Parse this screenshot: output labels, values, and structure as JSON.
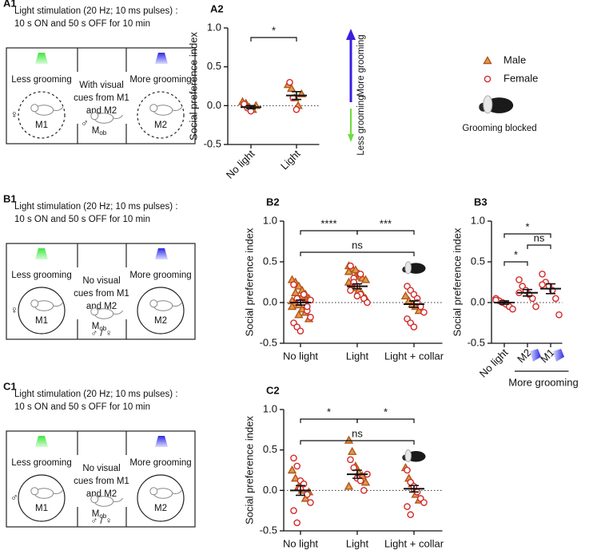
{
  "diagrams": [
    {
      "label": "A1",
      "heading": [
        "Light stimulation (20 Hz; 10 ms pulses) :",
        "10 s ON and 50 s OFF for 10 min"
      ],
      "left": "Less grooming",
      "middle": [
        "With visual",
        "cues from M1",
        "and M2"
      ],
      "right": "More grooming",
      "m1": "M1",
      "m2": "M2",
      "mob": {
        "main": "M",
        "sub": "ob"
      },
      "left_sex": "♀",
      "middle_sex": "♂",
      "cue_border": "dashed"
    },
    {
      "label": "B1",
      "heading": [
        "Light stimulation (20 Hz; 10 ms pulses) :",
        "10 s ON and 50 s OFF for 10 min"
      ],
      "left": "Less grooming",
      "middle": [
        "No visual",
        "cues from M1",
        "and M2"
      ],
      "right": "More grooming",
      "m1": "M1",
      "m2": "M2",
      "mob": {
        "main": "M",
        "sub": "ob"
      },
      "left_sex": "♀",
      "bottom_sex": "♂ / ♀",
      "cue_border": "solid"
    },
    {
      "label": "C1",
      "heading": [
        "Light stimulation (20 Hz; 10 ms pulses) :",
        "10 s ON and 50 s OFF for 10 min"
      ],
      "left": "Less grooming",
      "middle": [
        "No visual",
        "cues from M1",
        "and M2"
      ],
      "right": "More grooming",
      "m1": "M1",
      "m2": "M2",
      "mob": {
        "main": "M",
        "sub": "ob"
      },
      "left_sex": "♂",
      "bottom_sex": "♂ / ♀",
      "cue_border": "solid"
    }
  ],
  "legend": [
    {
      "name": "Male",
      "marker": "triangle",
      "color": "#e09a4c",
      "stroke": "#b0561a"
    },
    {
      "name": "Female",
      "marker": "circle",
      "color": "#ffffff",
      "stroke": "#d42a2a"
    }
  ],
  "collar_label": "Grooming blocked",
  "arrow": {
    "up": "More grooming",
    "down": "Less grooming",
    "up_color": "#3a1fe0",
    "down_color": "#6fdc3c"
  },
  "chart_data": [
    {
      "type": "strip",
      "title": "A2",
      "y_label": "Social preference index",
      "categories": [
        "No light",
        "Light"
      ],
      "ylim": [
        -0.5,
        1.0
      ],
      "yticks": [
        -0.5,
        {
          "value": 0,
          "label": "0.0"
        },
        0.5,
        {
          "value": 1,
          "label": "1.0"
        }
      ],
      "hline": 0,
      "series": [
        {
          "marker": "triangle",
          "color": "#e09a4c",
          "stroke": "#b0561a",
          "values": [
            [
              0.05,
              0.03,
              -0.02,
              -0.05,
              0.0
            ],
            [
              0.27,
              0.22,
              0.1,
              0.0,
              0.15
            ]
          ]
        },
        {
          "marker": "circle",
          "color": "#ffffff",
          "stroke": "#d42a2a",
          "values": [
            [
              0.02,
              -0.03,
              -0.07
            ],
            [
              0.3,
              0.1,
              -0.05
            ]
          ]
        }
      ],
      "mean": [
        -0.02,
        0.13
      ],
      "sem": [
        0.02,
        0.05
      ],
      "comparisons": [
        {
          "from": 0,
          "to": 1,
          "label": "*"
        }
      ]
    },
    {
      "type": "strip",
      "title": "B2",
      "y_label": "Social preference index",
      "categories": [
        "No light",
        "Light",
        "Light + collar"
      ],
      "ylim": [
        -0.5,
        1.0
      ],
      "yticks": [
        -0.5,
        {
          "value": 0,
          "label": "0.0"
        },
        0.5,
        {
          "value": 1,
          "label": "1.0"
        }
      ],
      "hline": 0,
      "series": [
        {
          "marker": "triangle",
          "color": "#e09a4c",
          "stroke": "#b0561a",
          "values": [
            [
              0.28,
              0.25,
              0.2,
              0.15,
              0.1,
              0.05,
              0.02,
              0.0,
              -0.03,
              -0.08,
              -0.12,
              -0.2,
              -0.05,
              0.12,
              -0.15,
              0.08
            ],
            [
              0.45,
              0.42,
              0.4,
              0.35,
              0.3,
              0.28,
              0.25,
              0.2,
              0.18,
              0.15,
              0.1,
              0.05,
              0.38,
              0.22,
              0.32
            ],
            [
              0.08,
              0.02,
              -0.02,
              -0.05,
              -0.1
            ]
          ]
        },
        {
          "marker": "circle",
          "color": "#ffffff",
          "stroke": "#d42a2a",
          "values": [
            [
              0.22,
              0.05,
              0.0,
              -0.02,
              -0.1,
              -0.18,
              -0.25,
              -0.3,
              -0.35,
              0.1,
              -0.05,
              0.03
            ],
            [
              0.45,
              0.3,
              0.2,
              0.1,
              0.05,
              0.0,
              0.15,
              0.25,
              0.08,
              0.35
            ],
            [
              0.2,
              0.15,
              0.1,
              0.05,
              -0.05,
              -0.12,
              -0.2,
              -0.25,
              -0.3,
              0.0
            ]
          ]
        }
      ],
      "mean": [
        0.0,
        0.2,
        -0.02
      ],
      "sem": [
        0.03,
        0.03,
        0.04
      ],
      "comparisons": [
        {
          "from": 0,
          "to": 1,
          "label": "****"
        },
        {
          "from": 1,
          "to": 2,
          "label": "***"
        },
        {
          "from": 0,
          "to": 2,
          "label": "ns"
        }
      ]
    },
    {
      "type": "strip",
      "title": "B3",
      "y_label": "Social preference index",
      "categories": [
        "No light",
        "M2",
        "M1"
      ],
      "group_label": "More grooming",
      "ylim": [
        -0.5,
        1.0
      ],
      "yticks": [
        -0.5,
        {
          "value": 0,
          "label": "0.0"
        },
        0.5,
        {
          "value": 1,
          "label": "1.0"
        }
      ],
      "hline": 0,
      "series": [
        {
          "marker": "circle",
          "color": "#ffffff",
          "stroke": "#d42a2a",
          "values": [
            [
              0.05,
              0.02,
              0.0,
              -0.02,
              -0.05,
              -0.08,
              0.03
            ],
            [
              0.28,
              0.2,
              0.15,
              0.1,
              0.05,
              -0.05,
              0.12
            ],
            [
              0.35,
              0.25,
              0.2,
              0.15,
              0.05,
              -0.15,
              0.22
            ]
          ]
        }
      ],
      "mean": [
        0.0,
        0.12,
        0.17
      ],
      "sem": [
        0.02,
        0.04,
        0.06
      ],
      "comparisons": [
        {
          "from": 0,
          "to": 1,
          "label": "*"
        },
        {
          "from": 1,
          "to": 2,
          "label": "ns"
        },
        {
          "from": 0,
          "to": 2,
          "label": "*"
        }
      ]
    },
    {
      "type": "strip",
      "title": "C2",
      "y_label": "Social preference index",
      "categories": [
        "No light",
        "Light",
        "Light + collar"
      ],
      "ylim": [
        -0.5,
        1.0
      ],
      "yticks": [
        -0.5,
        {
          "value": 0,
          "label": "0.0"
        },
        0.5,
        {
          "value": 1,
          "label": "1.0"
        }
      ],
      "hline": 0,
      "series": [
        {
          "marker": "triangle",
          "color": "#e09a4c",
          "stroke": "#b0561a",
          "values": [
            [
              0.25,
              0.15,
              0.05,
              0.0,
              -0.1,
              -0.02
            ],
            [
              0.62,
              0.48,
              0.3,
              0.22,
              0.18,
              0.1,
              0.05
            ],
            [
              0.28,
              0.15,
              0.08,
              -0.05,
              -0.12
            ]
          ]
        },
        {
          "marker": "circle",
          "color": "#ffffff",
          "stroke": "#d42a2a",
          "values": [
            [
              0.4,
              0.3,
              0.12,
              0.08,
              -0.05,
              -0.15,
              -0.25,
              -0.4,
              0.02
            ],
            [
              0.38,
              0.28,
              0.15,
              0.12,
              0.0,
              0.2
            ],
            [
              0.25,
              0.1,
              0.02,
              -0.02,
              -0.1,
              -0.15,
              -0.2,
              -0.3,
              0.05
            ]
          ]
        }
      ],
      "mean": [
        0.0,
        0.2,
        0.02
      ],
      "sem": [
        0.06,
        0.05,
        0.04
      ],
      "comparisons": [
        {
          "from": 0,
          "to": 1,
          "label": "*"
        },
        {
          "from": 1,
          "to": 2,
          "label": "*"
        },
        {
          "from": 0,
          "to": 2,
          "label": "ns"
        }
      ]
    }
  ]
}
